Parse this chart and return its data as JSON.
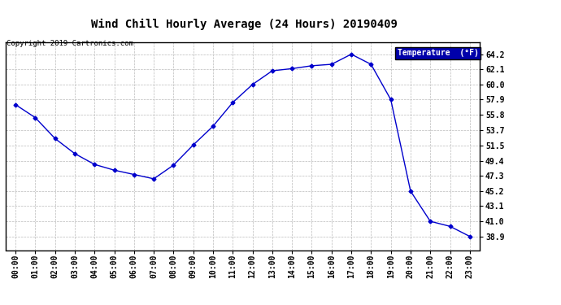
{
  "title": "Wind Chill Hourly Average (24 Hours) 20190409",
  "copyright": "Copyright 2019 Cartronics.com",
  "legend_label": "Temperature  (°F)",
  "hours": [
    0,
    1,
    2,
    3,
    4,
    5,
    6,
    7,
    8,
    9,
    10,
    11,
    12,
    13,
    14,
    15,
    16,
    17,
    18,
    19,
    20,
    21,
    22,
    23
  ],
  "temps": [
    57.2,
    55.4,
    52.5,
    50.4,
    48.9,
    48.1,
    47.5,
    46.9,
    48.8,
    51.6,
    54.2,
    57.5,
    60.0,
    61.9,
    62.2,
    62.6,
    62.8,
    64.2,
    62.8,
    57.9,
    45.2,
    41.0,
    40.3,
    38.9
  ],
  "line_color": "#0000cc",
  "marker": "D",
  "marker_size": 2.5,
  "background_color": "#ffffff",
  "plot_bg_color": "#ffffff",
  "grid_color": "#bbbbbb",
  "yticks": [
    38.9,
    41.0,
    43.1,
    45.2,
    47.3,
    49.4,
    51.5,
    53.7,
    55.8,
    57.9,
    60.0,
    62.1,
    64.2
  ],
  "ylim": [
    37.0,
    65.8
  ],
  "xlim": [
    -0.5,
    23.5
  ],
  "legend_bg": "#0000aa",
  "legend_text_color": "#ffffff",
  "title_fontsize": 10,
  "axis_fontsize": 7,
  "copyright_fontsize": 6.5
}
